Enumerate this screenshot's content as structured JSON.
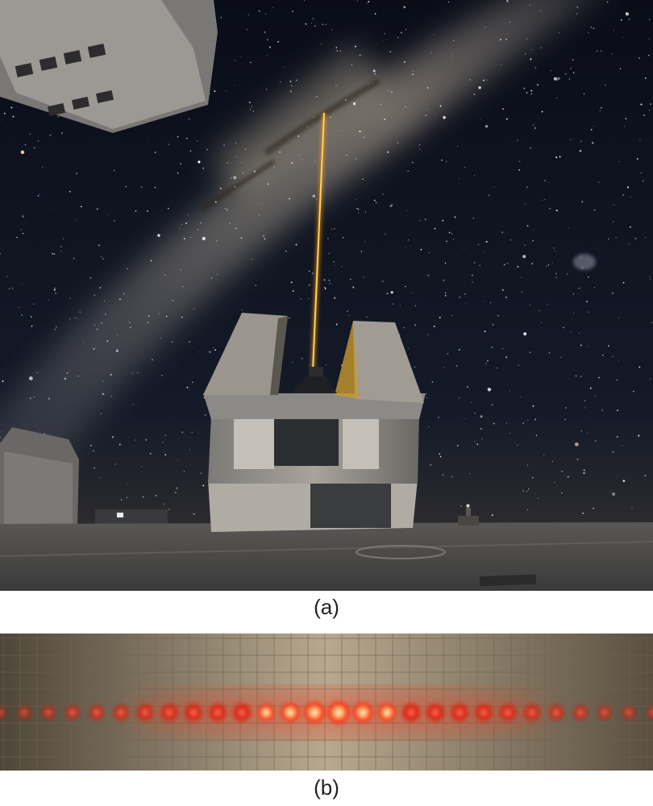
{
  "figure": {
    "panel_a": {
      "caption": "(a)",
      "subject": "laser-beam-from-telescope-dome-into-milky-way"
    },
    "panel_b": {
      "caption": "(b)",
      "subject": "red-laser-diffraction-spots-on-graph-paper"
    }
  },
  "colors": {
    "sky": "#0b0f1a",
    "laser": "#ffb020",
    "ground": "#4a4a4a",
    "spot": "#ff2a10",
    "paper": "#b8a88f"
  }
}
